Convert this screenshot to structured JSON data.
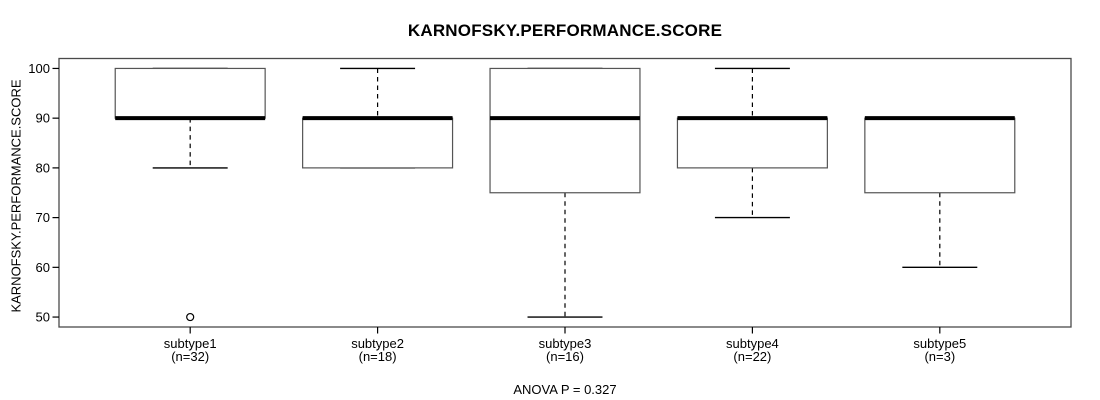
{
  "chart_data": {
    "type": "boxplot",
    "title": "KARNOFSKY.PERFORMANCE.SCORE",
    "ylabel": "KARNOFSKY.PERFORMANCE.SCORE",
    "xlabel": "",
    "annotation": "ANOVA P = 0.327",
    "ylim": [
      48,
      102
    ],
    "yticks": [
      50,
      60,
      70,
      80,
      90,
      100
    ],
    "grid": false,
    "legend": null,
    "categories": [
      "subtype1",
      "subtype2",
      "subtype3",
      "subtype4",
      "subtype5"
    ],
    "category_sublabels": [
      "(n=32)",
      "(n=18)",
      "(n=16)",
      "(n=22)",
      "(n=3)"
    ],
    "series": [
      {
        "name": "subtype1",
        "n": 32,
        "whisker_low": 80,
        "q1": 90,
        "median": 90,
        "q3": 100,
        "whisker_high": 100,
        "outliers": [
          50
        ]
      },
      {
        "name": "subtype2",
        "n": 18,
        "whisker_low": 80,
        "q1": 80,
        "median": 90,
        "q3": 90,
        "whisker_high": 100,
        "outliers": []
      },
      {
        "name": "subtype3",
        "n": 16,
        "whisker_low": 50,
        "q1": 75,
        "median": 90,
        "q3": 100,
        "whisker_high": 100,
        "outliers": []
      },
      {
        "name": "subtype4",
        "n": 22,
        "whisker_low": 70,
        "q1": 80,
        "median": 90,
        "q3": 90,
        "whisker_high": 100,
        "outliers": []
      },
      {
        "name": "subtype5",
        "n": 3,
        "whisker_low": 60,
        "q1": 75,
        "median": 90,
        "q3": 90,
        "whisker_high": 90,
        "outliers": []
      }
    ],
    "colors": {
      "background": "#ffffff",
      "box_fill": "#ffffff",
      "box_border": "#555555",
      "data_line": "#000000",
      "frame": "#4a4a4a"
    }
  }
}
